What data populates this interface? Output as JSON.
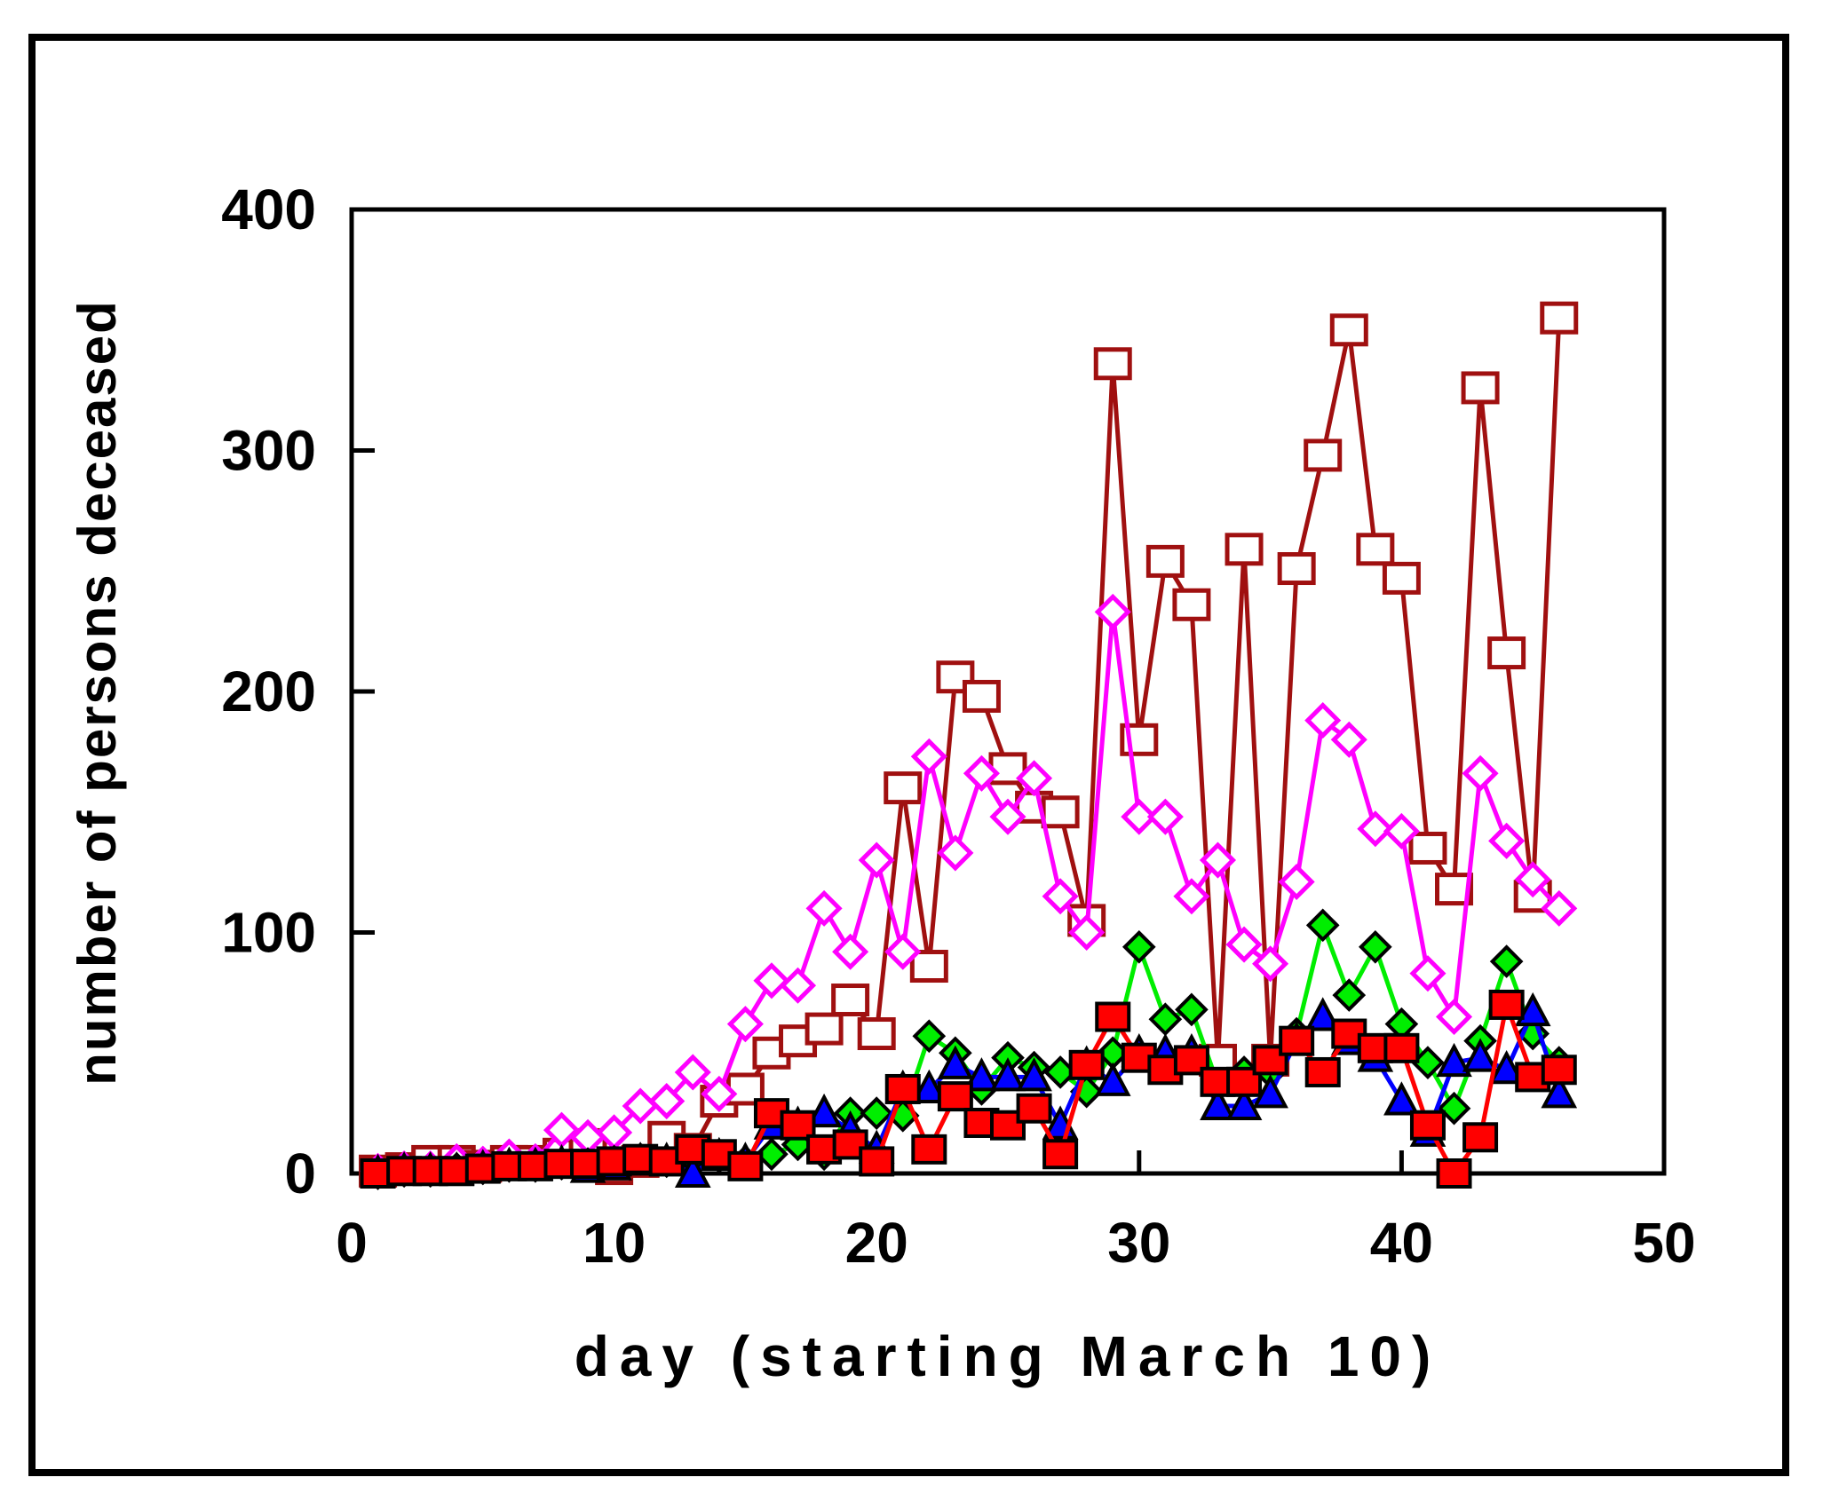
{
  "chart_data": {
    "type": "line",
    "title": "",
    "xlabel": "day (starting March 10)",
    "ylabel": "number of persons deceased",
    "xlim": [
      0,
      50
    ],
    "ylim": [
      0,
      400
    ],
    "xticks": [
      0,
      10,
      20,
      30,
      40,
      50
    ],
    "yticks": [
      0,
      100,
      200,
      300,
      400
    ],
    "grid": false,
    "legend": "none",
    "series": [
      {
        "color": "#a01010",
        "marker": "square-open",
        "x": [
          1,
          2,
          3,
          4,
          5,
          6,
          7,
          8,
          9,
          10,
          11,
          12,
          13,
          14,
          15,
          16,
          17,
          18,
          19,
          20,
          21,
          22,
          23,
          24,
          25,
          26,
          27,
          28,
          29,
          30,
          31,
          32,
          33,
          34,
          35,
          36,
          37,
          38,
          39,
          40,
          41,
          42,
          43,
          44,
          45,
          46
        ],
        "values": [
          1,
          2,
          5,
          5,
          3,
          5,
          5,
          8,
          12,
          2,
          5,
          15,
          10,
          30,
          35,
          50,
          55,
          60,
          72,
          58,
          160,
          86,
          206,
          198,
          168,
          152,
          150,
          105,
          336,
          180,
          254,
          236,
          47,
          259,
          47,
          251,
          298,
          350,
          259,
          247,
          135,
          118,
          326,
          216,
          115,
          355
        ]
      },
      {
        "color": "#ff00ff",
        "marker": "diamond-open",
        "x": [
          1,
          2,
          3,
          4,
          5,
          6,
          7,
          8,
          9,
          10,
          11,
          12,
          13,
          14,
          15,
          16,
          17,
          18,
          19,
          20,
          21,
          22,
          23,
          24,
          25,
          26,
          27,
          28,
          29,
          30,
          31,
          32,
          33,
          34,
          35,
          36,
          37,
          38,
          39,
          40,
          41,
          42,
          43,
          44,
          45,
          46
        ],
        "values": [
          1,
          2,
          2,
          5,
          4,
          7,
          5,
          18,
          15,
          17,
          28,
          30,
          42,
          33,
          62,
          80,
          78,
          110,
          92,
          130,
          92,
          173,
          133,
          166,
          148,
          164,
          115,
          100,
          233,
          148,
          148,
          115,
          130,
          95,
          87,
          121,
          188,
          180,
          143,
          142,
          83,
          65,
          166,
          138,
          122,
          110
        ]
      },
      {
        "color": "#00ee00",
        "marker": "diamond-filled",
        "x": [
          1,
          2,
          3,
          4,
          5,
          6,
          7,
          8,
          9,
          10,
          11,
          12,
          13,
          14,
          15,
          16,
          17,
          18,
          19,
          20,
          21,
          22,
          23,
          24,
          25,
          26,
          27,
          28,
          29,
          30,
          31,
          32,
          33,
          34,
          35,
          36,
          37,
          38,
          39,
          40,
          41,
          42,
          43,
          44,
          45,
          46
        ],
        "values": [
          0,
          1,
          1,
          2,
          2,
          3,
          3,
          4,
          4,
          5,
          6,
          5,
          6,
          7,
          5,
          8,
          12,
          8,
          25,
          25,
          24,
          57,
          50,
          35,
          48,
          44,
          42,
          34,
          50,
          94,
          64,
          68,
          37,
          42,
          42,
          58,
          103,
          74,
          94,
          62,
          46,
          27,
          55,
          88,
          58,
          46
        ]
      },
      {
        "color": "#0000ff",
        "marker": "triangle-filled",
        "x": [
          1,
          2,
          3,
          4,
          5,
          6,
          7,
          8,
          9,
          10,
          11,
          12,
          13,
          14,
          15,
          16,
          17,
          18,
          19,
          20,
          21,
          22,
          23,
          24,
          25,
          26,
          27,
          28,
          29,
          30,
          31,
          32,
          33,
          34,
          35,
          36,
          37,
          38,
          39,
          40,
          41,
          42,
          43,
          44,
          45,
          46
        ],
        "values": [
          0,
          1,
          1,
          1,
          2,
          3,
          3,
          4,
          2,
          3,
          5,
          5,
          0,
          7,
          5,
          20,
          20,
          25,
          18,
          10,
          35,
          35,
          45,
          40,
          40,
          40,
          20,
          45,
          38,
          50,
          50,
          50,
          28,
          28,
          33,
          55,
          65,
          55,
          48,
          30,
          17,
          46,
          48,
          43,
          67,
          33
        ]
      },
      {
        "color": "#ff0000",
        "marker": "square-filled",
        "x": [
          1,
          2,
          3,
          4,
          5,
          6,
          7,
          8,
          9,
          10,
          11,
          12,
          13,
          14,
          15,
          16,
          17,
          18,
          19,
          20,
          21,
          22,
          23,
          24,
          25,
          26,
          27,
          28,
          29,
          30,
          31,
          32,
          33,
          34,
          35,
          36,
          37,
          38,
          39,
          40,
          41,
          42,
          43,
          44,
          45,
          46
        ],
        "values": [
          0,
          1,
          1,
          1,
          2,
          3,
          3,
          4,
          4,
          5,
          6,
          5,
          10,
          8,
          3,
          25,
          20,
          10,
          12,
          5,
          35,
          10,
          32,
          21,
          20,
          27,
          8,
          45,
          65,
          48,
          43,
          47,
          38,
          38,
          47,
          55,
          42,
          58,
          52,
          52,
          20,
          0,
          15,
          70,
          40,
          43
        ]
      }
    ]
  }
}
